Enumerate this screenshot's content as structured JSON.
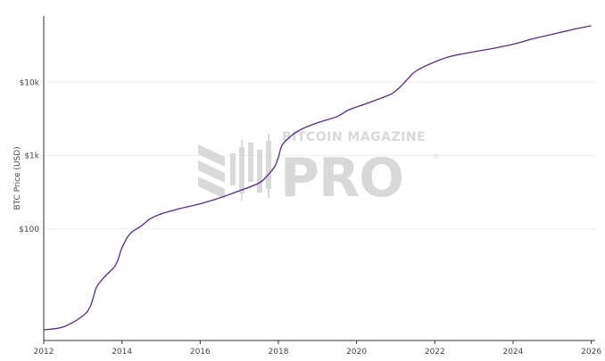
{
  "chart_data": {
    "type": "line",
    "title": "",
    "xlabel": "",
    "ylabel": "BTC Price (USD)",
    "y_scale": "log",
    "xlim": [
      2012,
      2026.1
    ],
    "ylim": [
      3,
      80000
    ],
    "x_ticks": [
      2012,
      2014,
      2016,
      2018,
      2020,
      2022,
      2024,
      2026
    ],
    "x_tick_labels": [
      "2012",
      "2014",
      "2016",
      "2018",
      "2020",
      "2022",
      "2024",
      "2026"
    ],
    "y_ticks": [
      100,
      1000,
      10000
    ],
    "y_tick_labels": [
      "$100",
      "$1k",
      "$10k"
    ],
    "grid": "horizontal",
    "legend": "none",
    "series": [
      {
        "color": "#5b2a8c",
        "points": [
          [
            2012.0,
            4.2
          ],
          [
            2012.5,
            4.6
          ],
          [
            2013.0,
            6.5
          ],
          [
            2013.2,
            9.0
          ],
          [
            2013.35,
            16
          ],
          [
            2013.55,
            22
          ],
          [
            2013.8,
            30
          ],
          [
            2013.9,
            38
          ],
          [
            2014.0,
            55
          ],
          [
            2014.2,
            85
          ],
          [
            2014.5,
            110
          ],
          [
            2014.7,
            135
          ],
          [
            2015.0,
            160
          ],
          [
            2015.5,
            190
          ],
          [
            2016.0,
            220
          ],
          [
            2016.5,
            265
          ],
          [
            2017.0,
            330
          ],
          [
            2017.5,
            420
          ],
          [
            2017.7,
            520
          ],
          [
            2017.9,
            700
          ],
          [
            2018.0,
            950
          ],
          [
            2018.1,
            1400
          ],
          [
            2018.35,
            1900
          ],
          [
            2018.6,
            2300
          ],
          [
            2019.0,
            2800
          ],
          [
            2019.5,
            3400
          ],
          [
            2019.8,
            4200
          ],
          [
            2020.2,
            5000
          ],
          [
            2020.6,
            6000
          ],
          [
            2020.9,
            7000
          ],
          [
            2021.1,
            8500
          ],
          [
            2021.3,
            11000
          ],
          [
            2021.5,
            14000
          ],
          [
            2021.9,
            18000
          ],
          [
            2022.4,
            22500
          ],
          [
            2023.0,
            26000
          ],
          [
            2023.5,
            29000
          ],
          [
            2024.0,
            33000
          ],
          [
            2024.5,
            39000
          ],
          [
            2025.0,
            45000
          ],
          [
            2025.5,
            52000
          ],
          [
            2026.0,
            59000
          ]
        ]
      }
    ]
  },
  "watermark": {
    "top": "BITCOIN MAGAZINE",
    "main": "PRO",
    "registered": "®"
  },
  "style": {
    "line_color": "#5b2a8c",
    "axis_color": "#333333",
    "grid_color": "#eeeeee",
    "watermark_color": "#d9d9d9"
  }
}
